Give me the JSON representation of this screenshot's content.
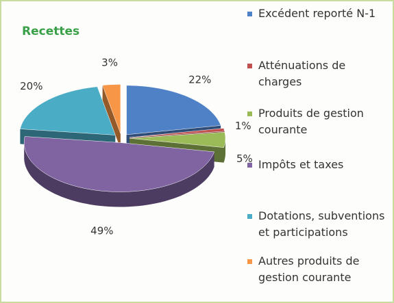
{
  "chart_data": {
    "type": "pie",
    "title": "Recettes",
    "categories": [
      "Excédent reporté N-1",
      "Atténuations de charges",
      "Produits de gestion courante",
      "Impôts et taxes",
      "Dotations, subventions et participations",
      "Autres produits de gestion courante"
    ],
    "values": [
      22,
      1,
      5,
      49,
      20,
      3
    ],
    "value_labels": [
      "22%",
      "1%",
      "5%",
      "49%",
      "20%",
      "3%"
    ],
    "colors": [
      "#4f81c7",
      "#c0504d",
      "#9bbb59",
      "#8064a2",
      "#4bacc6",
      "#f79646"
    ],
    "legend": "right"
  }
}
